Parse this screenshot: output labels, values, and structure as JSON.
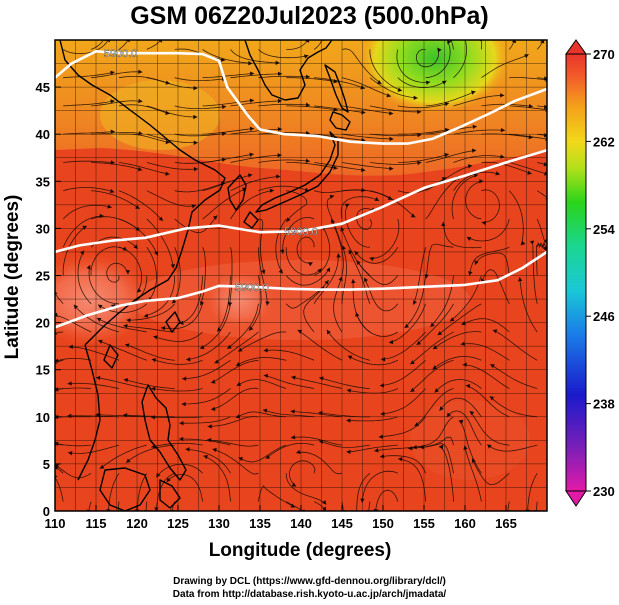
{
  "title": "GSM 06Z20Jul2023 (500.0hPa)",
  "xlabel": "Longitude (degrees)",
  "ylabel": "Latitude  (degrees)",
  "credit_line1": "Drawing by DCL (https://www.gfd-dennou.org/library/dcl/)",
  "credit_line2": "Data from http://database.rish.kyoto-u.ac.jp/arch/jmadata/",
  "x_ticks": [
    "110",
    "115",
    "120",
    "125",
    "130",
    "135",
    "140",
    "145",
    "150",
    "155",
    "160",
    "165"
  ],
  "y_ticks": [
    "0",
    "5",
    "10",
    "15",
    "20",
    "25",
    "30",
    "35",
    "40",
    "45"
  ],
  "colorbar_ticks": [
    "270",
    "262",
    "254",
    "246",
    "238",
    "230"
  ],
  "colors": {
    "warm_field": "#e8451e",
    "hot_core": "#f26a4a",
    "cool_field": "#f3a21a",
    "cold_core": "#4fd02e",
    "contour": "#ffffff",
    "coast": "#000000"
  },
  "chart_data": {
    "type": "heatmap",
    "variable": "temperature at 500.0hPa with streamlines",
    "xlim": [
      110,
      170
    ],
    "ylim": [
      0,
      50
    ],
    "colorbar_range": [
      230,
      270
    ],
    "contours": [
      {
        "label": "5900.0",
        "points": [
          [
            110,
            46
          ],
          [
            112,
            47.5
          ],
          [
            115,
            48.8
          ],
          [
            118,
            48.6
          ],
          [
            121,
            48.6
          ],
          [
            125,
            48.6
          ],
          [
            128,
            48.5
          ],
          [
            130,
            47.8
          ],
          [
            131,
            45
          ],
          [
            133.5,
            42
          ],
          [
            135,
            40.5
          ],
          [
            138,
            40
          ],
          [
            142,
            39.8
          ],
          [
            146,
            39.2
          ],
          [
            150,
            39
          ],
          [
            153,
            39
          ],
          [
            156,
            39.5
          ],
          [
            159,
            40.6
          ],
          [
            163,
            42.2
          ],
          [
            166,
            43.5
          ],
          [
            170,
            44.8
          ]
        ]
      },
      {
        "label": "5900.0",
        "points": [
          [
            110,
            27.5
          ],
          [
            113,
            28.2
          ],
          [
            117,
            28.7
          ],
          [
            121,
            29
          ],
          [
            126,
            30
          ],
          [
            130,
            30.3
          ],
          [
            135,
            29.6
          ],
          [
            140,
            29.7
          ],
          [
            145,
            30.5
          ],
          [
            150,
            32.3
          ],
          [
            155,
            34.3
          ],
          [
            160,
            35.6
          ],
          [
            165,
            37
          ],
          [
            170,
            38.3
          ]
        ]
      },
      {
        "label": "5900.0",
        "points": [
          [
            110,
            19.5
          ],
          [
            114,
            20.8
          ],
          [
            118,
            21.8
          ],
          [
            121,
            22.3
          ],
          [
            125,
            22.6
          ],
          [
            128,
            23.3
          ],
          [
            130,
            23.9
          ],
          [
            134,
            23.8
          ],
          [
            138,
            23.6
          ],
          [
            142,
            23.5
          ],
          [
            146,
            23.5
          ],
          [
            150,
            23.6
          ],
          [
            155,
            23.8
          ],
          [
            160,
            24
          ],
          [
            164,
            24.5
          ],
          [
            167,
            25.8
          ],
          [
            170,
            27.5
          ]
        ]
      }
    ]
  }
}
